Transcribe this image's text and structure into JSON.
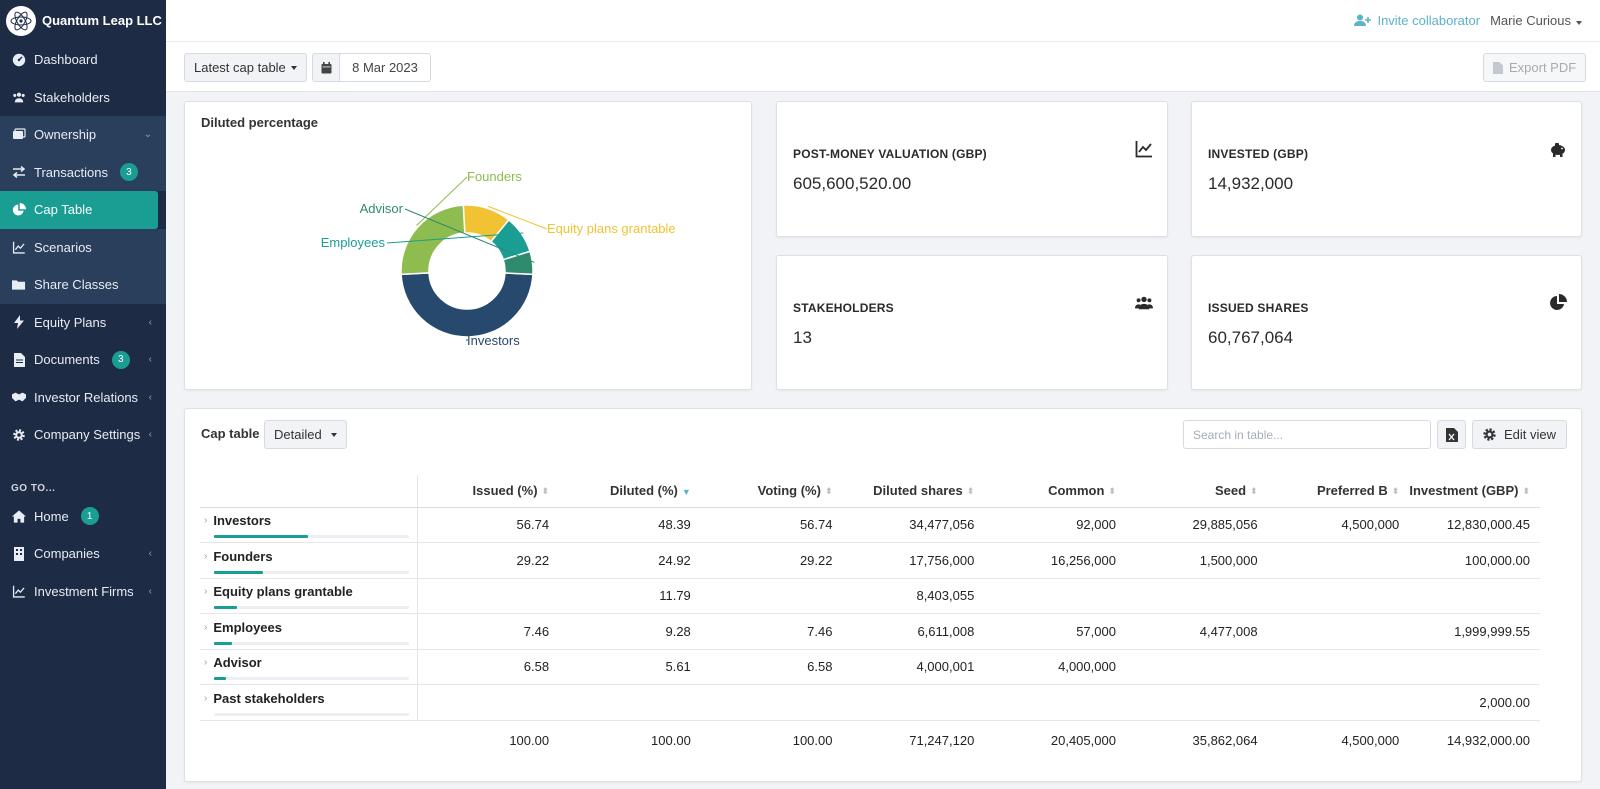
{
  "brand": {
    "name": "Quantum Leap LLC",
    "logo_icon": "atom-icon"
  },
  "sidebar": {
    "items": [
      {
        "label": "Dashboard",
        "icon": "dashboard-icon"
      },
      {
        "label": "Stakeholders",
        "icon": "users-icon"
      },
      {
        "label": "Ownership",
        "icon": "layers-icon",
        "chevron": "⌄"
      },
      {
        "label": "Transactions",
        "icon": "exchange-icon",
        "badge": "3"
      },
      {
        "label": "Cap Table",
        "icon": "pie-chart-icon"
      },
      {
        "label": "Scenarios",
        "icon": "line-chart-icon"
      },
      {
        "label": "Share Classes",
        "icon": "folder-icon"
      },
      {
        "label": "Equity Plans",
        "icon": "bolt-icon",
        "chevron": "‹"
      },
      {
        "label": "Documents",
        "icon": "document-icon",
        "badge": "3",
        "chevron": "‹"
      },
      {
        "label": "Investor Relations",
        "icon": "handshake-icon",
        "chevron": "‹"
      },
      {
        "label": "Company Settings",
        "icon": "gear-icon",
        "chevron": "‹"
      }
    ],
    "goto_label": "GO TO...",
    "goto_items": [
      {
        "label": "Home",
        "icon": "home-icon",
        "badge": "1"
      },
      {
        "label": "Companies",
        "icon": "building-icon",
        "chevron": "‹"
      },
      {
        "label": "Investment Firms",
        "icon": "line-chart-icon",
        "chevron": "‹"
      }
    ]
  },
  "topbar": {
    "invite_label": "Invite collaborator",
    "user_name": "Marie Curious"
  },
  "toolbar": {
    "view_select": "Latest cap table",
    "date": "8 Mar 2023",
    "export_label": "Export PDF"
  },
  "donut": {
    "title": "Diluted percentage",
    "segments": [
      {
        "label": "Investors",
        "value": 48.39,
        "color": "#27496d"
      },
      {
        "label": "Founders",
        "value": 24.92,
        "color": "#8ebc4e"
      },
      {
        "label": "Equity plans grantable",
        "value": 11.79,
        "color": "#f1c232"
      },
      {
        "label": "Employees",
        "value": 9.28,
        "color": "#1a9e93"
      },
      {
        "label": "Advisor",
        "value": 5.61,
        "color": "#2f8a6e"
      }
    ]
  },
  "stats": {
    "post_money": {
      "label": "POST-MONEY VALUATION (GBP)",
      "value": "605,600,520.00"
    },
    "invested": {
      "label": "INVESTED (GBP)",
      "value": "14,932,000"
    },
    "stakeholders": {
      "label": "STAKEHOLDERS",
      "value": "13"
    },
    "issued_shares": {
      "label": "ISSUED SHARES",
      "value": "60,767,064"
    }
  },
  "cap_table": {
    "title": "Cap table",
    "mode": "Detailed",
    "search_placeholder": "Search in table...",
    "edit_view_label": "Edit view",
    "columns": [
      "Issued (%)",
      "Diluted (%)",
      "Voting (%)",
      "Diluted shares",
      "Common",
      "Seed",
      "Preferred B",
      "Investment (GBP)"
    ],
    "rows": [
      {
        "name": "Investors",
        "bar": 0.48,
        "cells": [
          "56.74",
          "48.39",
          "56.74",
          "34,477,056",
          "92,000",
          "29,885,056",
          "4,500,000",
          "12,830,000.45"
        ]
      },
      {
        "name": "Founders",
        "bar": 0.25,
        "cells": [
          "29.22",
          "24.92",
          "29.22",
          "17,756,000",
          "16,256,000",
          "1,500,000",
          "",
          "100,000.00"
        ]
      },
      {
        "name": "Equity plans grantable",
        "bar": 0.12,
        "cells": [
          "",
          "11.79",
          "",
          "8,403,055",
          "",
          "",
          "",
          ""
        ]
      },
      {
        "name": "Employees",
        "bar": 0.09,
        "cells": [
          "7.46",
          "9.28",
          "7.46",
          "6,611,008",
          "57,000",
          "4,477,008",
          "",
          "1,999,999.55"
        ]
      },
      {
        "name": "Advisor",
        "bar": 0.06,
        "cells": [
          "6.58",
          "5.61",
          "6.58",
          "4,000,001",
          "4,000,000",
          "",
          "",
          ""
        ]
      },
      {
        "name": "Past stakeholders",
        "bar": 0,
        "cells": [
          "",
          "",
          "",
          "",
          "",
          "",
          "",
          "2,000.00"
        ]
      }
    ],
    "totals": [
      "100.00",
      "100.00",
      "100.00",
      "71,247,120",
      "20,405,000",
      "35,862,064",
      "4,500,000",
      "14,932,000.00"
    ]
  }
}
